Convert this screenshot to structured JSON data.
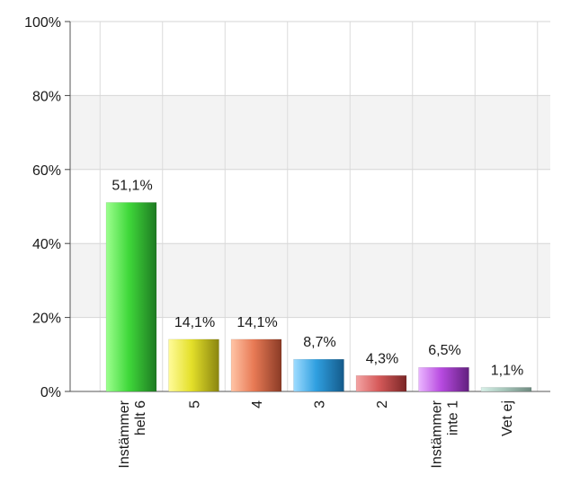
{
  "chart_data": {
    "type": "bar",
    "categories": [
      "Instämmer helt 6",
      "5",
      "4",
      "3",
      "2",
      "Instämmer inte 1",
      "Vet ej"
    ],
    "category_lines": [
      [
        "Instämmer",
        "helt 6"
      ],
      [
        "5"
      ],
      [
        "4"
      ],
      [
        "3"
      ],
      [
        "2"
      ],
      [
        "Instämmer",
        "inte 1"
      ],
      [
        "Vet ej"
      ]
    ],
    "values": [
      51.1,
      14.1,
      14.1,
      8.7,
      4.3,
      6.5,
      1.1
    ],
    "data_labels": [
      "51,1%",
      "14,1%",
      "14,1%",
      "8,7%",
      "4,3%",
      "6,5%",
      "1,1%"
    ],
    "y_ticks": [
      0,
      20,
      40,
      60,
      80,
      100
    ],
    "y_tick_labels": [
      "0%",
      "20%",
      "40%",
      "60%",
      "80%",
      "100%"
    ],
    "ylim": [
      0,
      100
    ],
    "title": "",
    "xlabel": "",
    "ylabel": "",
    "grid": true,
    "colors": [
      [
        "#9dff8f",
        "#3fd83a",
        "#1e7a22"
      ],
      [
        "#fffb9a",
        "#e4e02a",
        "#8a8510"
      ],
      [
        "#ffc4a6",
        "#e87a55",
        "#8a3b26"
      ],
      [
        "#9fdcff",
        "#2f9fe0",
        "#145a8a"
      ],
      [
        "#f3a4a4",
        "#d65a5a",
        "#7a2626"
      ],
      [
        "#eab6ff",
        "#b74ae0",
        "#62207e"
      ],
      [
        "#d8f0e8",
        "#a8c8bc",
        "#6f8a80"
      ]
    ]
  }
}
